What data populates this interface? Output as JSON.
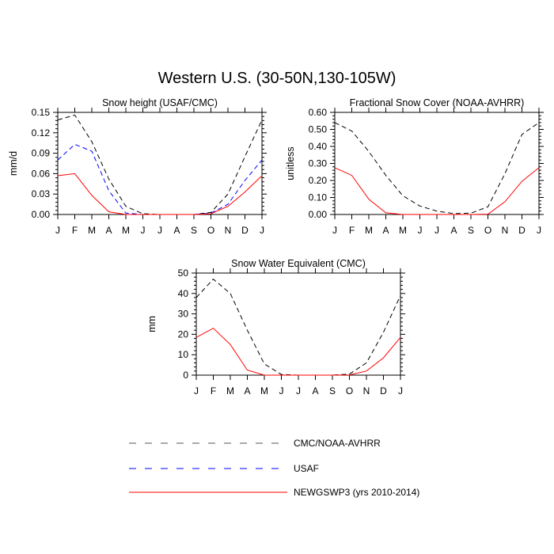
{
  "figure": {
    "title": "Western U.S. (30-50N,130-105W)"
  },
  "chart_data": [
    {
      "type": "line",
      "title": "Snow height (USAF/CMC)",
      "xlabel": "",
      "ylabel": "mm/d",
      "x": [
        "J",
        "F",
        "M",
        "A",
        "M",
        "J",
        "J",
        "A",
        "S",
        "O",
        "N",
        "D",
        "J"
      ],
      "ylim": [
        0,
        0.15
      ],
      "yticks": [
        "0.00",
        "0.03",
        "0.06",
        "0.09",
        "0.12",
        "0.15"
      ],
      "series": [
        {
          "name": "CMC/NOAA-AVHRR",
          "color": "#000000",
          "dash": "dashed",
          "values": [
            0.139,
            0.146,
            0.107,
            0.052,
            0.012,
            0.001,
            0.0,
            0.0,
            0.0,
            0.003,
            0.03,
            0.085,
            0.139
          ]
        },
        {
          "name": "USAF",
          "color": "#0000ff",
          "dash": "dashed",
          "values": [
            0.08,
            0.103,
            0.093,
            0.035,
            0.002,
            0.0,
            0.0,
            0.0,
            0.0,
            0.002,
            0.015,
            0.05,
            0.08
          ]
        },
        {
          "name": "NEWGSWP3 (yrs 2010-2014)",
          "color": "#ff0000",
          "dash": "solid",
          "values": [
            0.057,
            0.06,
            0.028,
            0.004,
            0.0,
            0.0,
            0.0,
            0.0,
            0.0,
            0.001,
            0.012,
            0.033,
            0.057
          ]
        }
      ]
    },
    {
      "type": "line",
      "title": "Fractional Snow Cover (NOAA-AVHRR)",
      "xlabel": "",
      "ylabel": "unitless",
      "x": [
        "J",
        "F",
        "M",
        "A",
        "M",
        "J",
        "J",
        "A",
        "S",
        "O",
        "N",
        "D",
        "J"
      ],
      "ylim": [
        0,
        0.6
      ],
      "yticks": [
        "0.00",
        "0.10",
        "0.20",
        "0.30",
        "0.40",
        "0.50",
        "0.60"
      ],
      "series": [
        {
          "name": "CMC/NOAA-AVHRR",
          "color": "#000000",
          "dash": "dashed",
          "values": [
            0.54,
            0.49,
            0.37,
            0.23,
            0.11,
            0.05,
            0.02,
            0.005,
            0.008,
            0.045,
            0.24,
            0.47,
            0.54
          ]
        },
        {
          "name": "NEWGSWP3 (yrs 2010-2014)",
          "color": "#ff0000",
          "dash": "solid",
          "values": [
            0.275,
            0.23,
            0.09,
            0.01,
            0.0,
            0.0,
            0.0,
            0.0,
            0.0,
            0.002,
            0.075,
            0.195,
            0.275
          ]
        }
      ]
    },
    {
      "type": "line",
      "title": "Snow Water Equivalent (CMC)",
      "xlabel": "",
      "ylabel": "mm",
      "x": [
        "J",
        "F",
        "M",
        "A",
        "M",
        "J",
        "J",
        "A",
        "S",
        "O",
        "N",
        "D",
        "J"
      ],
      "ylim": [
        0,
        50
      ],
      "yticks": [
        "0",
        "10",
        "20",
        "30",
        "40",
        "50"
      ],
      "series": [
        {
          "name": "CMC/NOAA-AVHRR",
          "color": "#000000",
          "dash": "dashed",
          "values": [
            38,
            47,
            40,
            22,
            5.5,
            0.3,
            0.0,
            0.0,
            0.0,
            0.5,
            6,
            21,
            39
          ]
        },
        {
          "name": "NEWGSWP3 (yrs 2010-2014)",
          "color": "#ff0000",
          "dash": "solid",
          "values": [
            18.5,
            23,
            15,
            2.5,
            0.0,
            0.0,
            0.0,
            0.0,
            0.0,
            0.1,
            2,
            8.5,
            18.5
          ]
        }
      ]
    }
  ],
  "legend": {
    "entries": [
      {
        "label": "CMC/NOAA-AVHRR",
        "color": "#555555",
        "dash": "dashed"
      },
      {
        "label": "USAF",
        "color": "#0000ff",
        "dash": "dashed"
      },
      {
        "label": "NEWGSWP3 (yrs 2010-2014)",
        "color": "#ff0000",
        "dash": "solid"
      }
    ]
  }
}
